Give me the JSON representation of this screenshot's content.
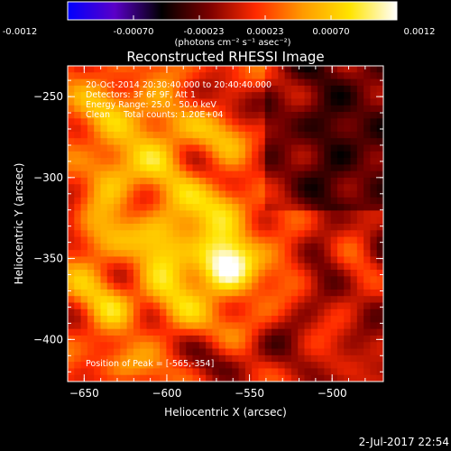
{
  "colorbar": {
    "tick_labels": [
      "-0.0012",
      "-0.00070",
      "-0.00023",
      "0.00023",
      "0.00070",
      "0.0012"
    ],
    "unit_label": "(photons cm⁻² s⁻¹ asec⁻²)",
    "colors": [
      "#0000ff",
      "#5a00c8",
      "#000000",
      "#7a0000",
      "#ff2a00",
      "#ff9a00",
      "#ffe400",
      "#ffffff"
    ]
  },
  "annotation_lines": [
    "20-Oct-2014 20:30:40.000 to 20:40:40.000",
    "Detectors: 3F 6F 9F, Att 1",
    "Energy Range: 25.0 - 50.0 keV",
    "Clean     Total counts: 1.20E+04"
  ],
  "peak_label": "Position of Peak = [-565,-354]",
  "footer_date": "2-Jul-2017 22:54",
  "chart_data": {
    "type": "heatmap",
    "title": "Reconstructed RHESSI Image",
    "xlabel": "Heliocentric X (arcsec)",
    "ylabel": "Heliocentric Y (arcsec)",
    "xlim": [
      -660,
      -469
    ],
    "ylim": [
      -426,
      -231
    ],
    "xticks": [
      -650,
      -600,
      -550,
      -500
    ],
    "yticks": [
      -250,
      -300,
      -350,
      -400
    ],
    "colorbar_range": [
      -0.0012,
      0.0012
    ],
    "peak": {
      "x": -565,
      "y": -354
    }
  }
}
